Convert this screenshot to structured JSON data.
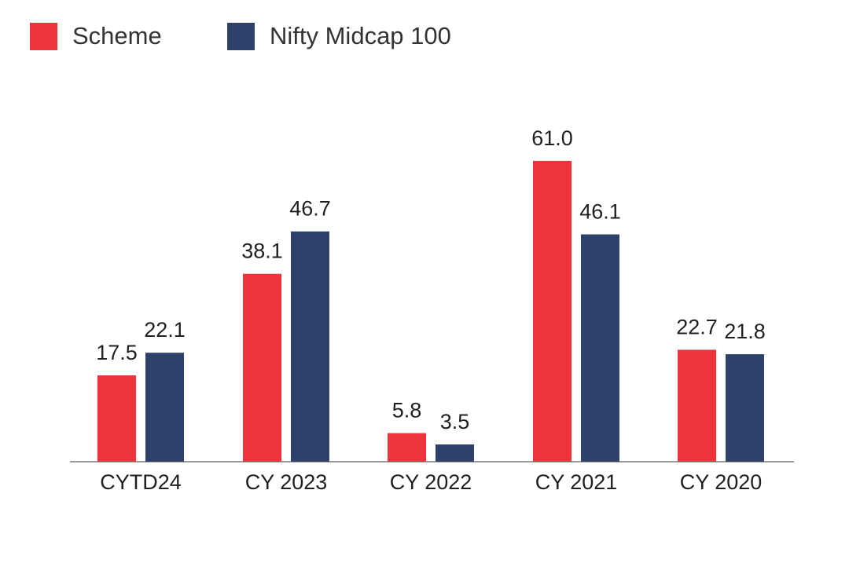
{
  "colors": {
    "scheme": "#ee333d",
    "benchmark": "#2e416b",
    "axis": "#9a9a9a"
  },
  "legend": [
    {
      "label": "Scheme",
      "color": "#ee333d"
    },
    {
      "label": "Nifty Midcap 100",
      "color": "#2e416b"
    }
  ],
  "chart_data": {
    "type": "bar",
    "categories": [
      "CYTD24",
      "CY 2023",
      "CY 2022",
      "CY 2021",
      "CY 2020"
    ],
    "series": [
      {
        "name": "Scheme",
        "values": [
          17.5,
          38.1,
          5.8,
          61.0,
          22.7
        ],
        "labels": [
          "17.5",
          "38.1",
          "5.8",
          "61.0",
          "22.7"
        ]
      },
      {
        "name": "Nifty Midcap 100",
        "values": [
          22.1,
          46.7,
          3.5,
          46.1,
          21.8
        ],
        "labels": [
          "22.1",
          "46.7",
          "3.5",
          "46.1",
          "21.8"
        ]
      }
    ],
    "title": "",
    "xlabel": "",
    "ylabel": "",
    "ylim": [
      0,
      61.0
    ],
    "grid": false,
    "legend_position": "top-left",
    "data_labels": true
  }
}
